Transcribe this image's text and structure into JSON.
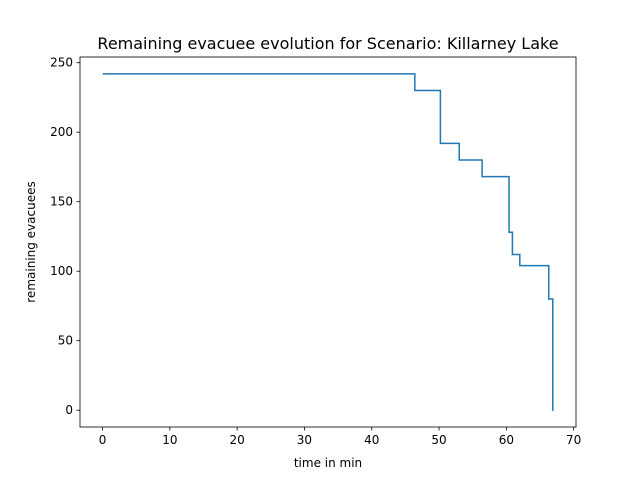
{
  "chart_data": {
    "type": "line",
    "step": "post",
    "title": "Remaining evacuee evolution for Scenario: Killarney Lake",
    "xlabel": "time in min",
    "ylabel": "remaining evacuees",
    "xlim": [
      -3.35,
      70.35
    ],
    "ylim": [
      -12.1,
      254.1
    ],
    "xticks": [
      0,
      10,
      20,
      30,
      40,
      50,
      60,
      70
    ],
    "yticks": [
      0,
      50,
      100,
      150,
      200,
      250
    ],
    "xtick_labels": [
      "0",
      "10",
      "20",
      "30",
      "40",
      "50",
      "60",
      "70"
    ],
    "ytick_labels": [
      "0",
      "50",
      "100",
      "150",
      "200",
      "250"
    ],
    "grid": false,
    "line_color": "#1f77b4",
    "series": [
      {
        "x": [
          0,
          46.4,
          50.2,
          53.0,
          56.4,
          60.4,
          60.9,
          62.0,
          66.3,
          66.9,
          67.0
        ],
        "values": [
          242,
          230,
          192,
          180,
          168,
          128,
          112,
          104,
          80,
          0,
          0
        ]
      }
    ]
  }
}
